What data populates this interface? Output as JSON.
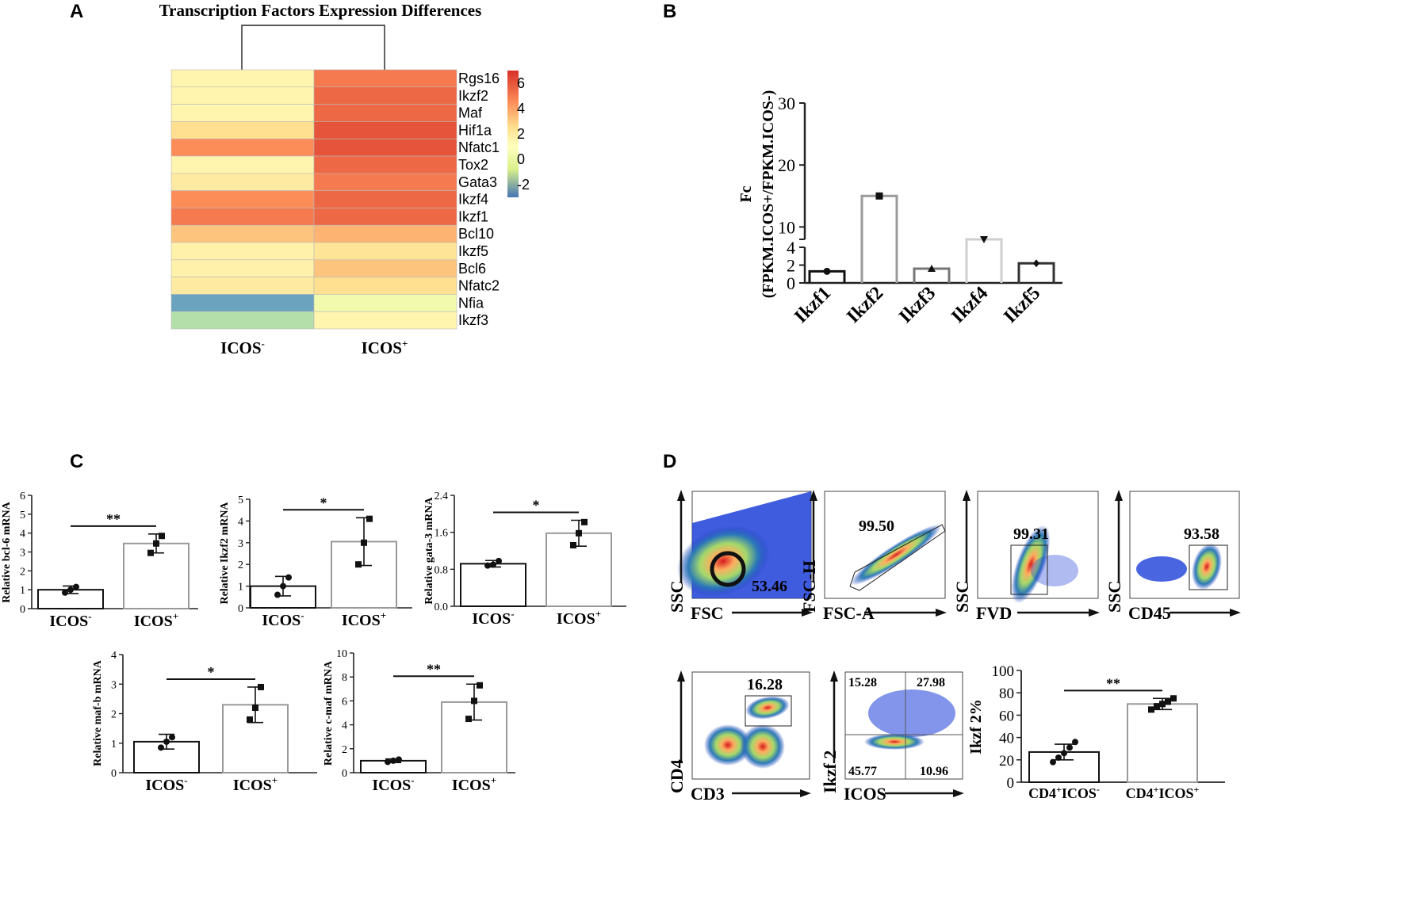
{
  "panels": {
    "A": {
      "letter": "A",
      "title": "Transcription Factors Expression Differences",
      "genes": [
        "Rgs16",
        "Ikzf2",
        "Maf",
        "Hif1a",
        "Nfatc1",
        "Tox2",
        "Gata3",
        "Ikzf4",
        "Ikzf1",
        "Bcl10",
        "Ikzf5",
        "Bcl6",
        "Nfatc2",
        "Nfia",
        "Ikzf3"
      ],
      "values_icos_neg": [
        2.0,
        2.0,
        2.0,
        3.0,
        4.5,
        2.0,
        2.5,
        4.5,
        5.0,
        3.5,
        2.2,
        2.2,
        2.5,
        -2.0,
        -0.5
      ],
      "values_icos_pos": [
        5.0,
        5.5,
        5.5,
        6.0,
        6.0,
        5.5,
        5.0,
        5.5,
        5.5,
        3.8,
        2.8,
        3.5,
        3.0,
        1.0,
        2.0
      ],
      "col_base": [
        "ICOS",
        "ICOS"
      ],
      "col_sup": [
        "-",
        "+"
      ],
      "legend_ticks": [
        "6",
        "4",
        "2",
        "0",
        "-2"
      ],
      "legend_tick_values": [
        6,
        4,
        2,
        0,
        -2
      ],
      "color_min": -3,
      "color_max": 7
    },
    "B": {
      "letter": "B",
      "ylabel_line1": "Fc",
      "ylabel_line2": "(FPKM.ICOS+/FPKM.ICOS-)",
      "upper_ticks": [
        "30",
        "20",
        "10"
      ],
      "upper_tick_values": [
        30,
        20,
        10
      ],
      "lower_ticks": [
        "4",
        "2",
        "0"
      ],
      "lower_tick_values": [
        4,
        2,
        0
      ],
      "chart_data": {
        "type": "bar",
        "categories": [
          "Ikzf1",
          "Ikzf2",
          "Ikzf3",
          "Ikzf4",
          "Ikzf5"
        ],
        "values": [
          1.3,
          15.0,
          1.6,
          6.0,
          2.2
        ],
        "markers": [
          "circle",
          "square",
          "triangle",
          "triangle-down",
          "diamond"
        ],
        "bar_colors": [
          "#111111",
          "#9a9a9a",
          "#777777",
          "#cfcfcf",
          "#333333"
        ],
        "ylabel": "Fc (FPKM.ICOS+/FPKM.ICOS-)",
        "ylim_upper": [
          8,
          30
        ],
        "ylim_lower": [
          0,
          4
        ],
        "axis_break": true
      }
    },
    "C": {
      "letter": "C",
      "x_base": "ICOS",
      "x_sup": [
        "-",
        "+"
      ],
      "charts": [
        {
          "ylabel": "Relative bcl-6 mRNA",
          "sig": "**",
          "ticks": [
            "6",
            "5",
            "4",
            "3",
            "2",
            "1",
            "0"
          ],
          "tick_values": [
            6,
            5,
            4,
            3,
            2,
            1,
            0
          ],
          "chart_data": {
            "type": "bar",
            "categories": [
              "ICOS-",
              "ICOS+"
            ],
            "values": [
              1.0,
              3.45
            ],
            "sd": [
              0.2,
              0.5
            ],
            "points": [
              [
                0.85,
                1.0,
                1.15
              ],
              [
                2.95,
                3.45,
                3.85
              ]
            ],
            "ylim": [
              0,
              6
            ]
          }
        },
        {
          "ylabel": "Relative Ikzf2 mRNA",
          "sig": "*",
          "ticks": [
            "5",
            "4",
            "3",
            "2",
            "1",
            "0"
          ],
          "tick_values": [
            5,
            4,
            3,
            2,
            1,
            0
          ],
          "chart_data": {
            "type": "bar",
            "categories": [
              "ICOS-",
              "ICOS+"
            ],
            "values": [
              1.0,
              3.05
            ],
            "sd": [
              0.45,
              1.1
            ],
            "points": [
              [
                0.6,
                1.0,
                1.4
              ],
              [
                2.0,
                3.0,
                4.1
              ]
            ],
            "ylim": [
              0,
              5
            ]
          }
        },
        {
          "ylabel": "Relative gata-3 mRNA",
          "sig": "*",
          "ticks": [
            "2.4",
            "1.6",
            "0.8",
            "0.0"
          ],
          "tick_values": [
            2.4,
            1.6,
            0.8,
            0.0
          ],
          "chart_data": {
            "type": "bar",
            "categories": [
              "ICOS-",
              "ICOS+"
            ],
            "values": [
              0.92,
              1.58
            ],
            "sd": [
              0.07,
              0.28
            ],
            "points": [
              [
                0.88,
                0.9,
                0.98
              ],
              [
                1.32,
                1.58,
                1.82
              ]
            ],
            "ylim": [
              0,
              2.4
            ]
          }
        },
        {
          "ylabel": "Relative maf-b mRNA",
          "sig": "*",
          "ticks": [
            "4",
            "3",
            "2",
            "1",
            "0"
          ],
          "tick_values": [
            4,
            3,
            2,
            1,
            0
          ],
          "chart_data": {
            "type": "bar",
            "categories": [
              "ICOS-",
              "ICOS+"
            ],
            "values": [
              1.05,
              2.3
            ],
            "sd": [
              0.25,
              0.6
            ],
            "points": [
              [
                0.85,
                1.05,
                1.2
              ],
              [
                1.8,
                2.2,
                2.9
              ]
            ],
            "ylim": [
              0,
              4
            ]
          }
        },
        {
          "ylabel": "Relative c-maf mRNA",
          "sig": "**",
          "ticks": [
            "10",
            "8",
            "6",
            "4",
            "2",
            "0"
          ],
          "tick_values": [
            10,
            8,
            6,
            4,
            2,
            0
          ],
          "chart_data": {
            "type": "bar",
            "categories": [
              "ICOS-",
              "ICOS+"
            ],
            "values": [
              1.0,
              5.9
            ],
            "sd": [
              0.15,
              1.5
            ],
            "points": [
              [
                0.9,
                1.0,
                1.1
              ],
              [
                4.5,
                6.0,
                7.3
              ]
            ],
            "ylim": [
              0,
              10
            ]
          }
        }
      ]
    },
    "D": {
      "letter": "D",
      "flow": [
        {
          "x": "FSC",
          "y": "SSC",
          "gate_values": [
            "53.46"
          ]
        },
        {
          "x": "FSC-A",
          "y": "FSC-H",
          "gate_values": [
            "99.50"
          ]
        },
        {
          "x": "FVD",
          "y": "SSC",
          "gate_values": [
            "99.31"
          ]
        },
        {
          "x": "CD45",
          "y": "SSC",
          "gate_values": [
            "93.58"
          ]
        },
        {
          "x": "CD3",
          "y": "CD4",
          "gate_values": [
            "16.28"
          ]
        },
        {
          "x": "ICOS",
          "y": "Ikzf 2",
          "gate_values": [
            "15.28",
            "27.98",
            "45.77",
            "10.96"
          ]
        }
      ],
      "summary": {
        "ylabel": "Ikzf 2%",
        "sig": "**",
        "ticks": [
          "100",
          "80",
          "60",
          "40",
          "20",
          "0"
        ],
        "tick_values": [
          100,
          80,
          60,
          40,
          20,
          0
        ],
        "x_labels": [
          {
            "pre": "CD4",
            "pre_sup": "+",
            "base": "ICOS",
            "sup": "-"
          },
          {
            "pre": "CD4",
            "pre_sup": "+",
            "base": "ICOS",
            "sup": "+"
          }
        ],
        "chart_data": {
          "type": "bar",
          "categories": [
            "CD4+ICOS-",
            "CD4+ICOS+"
          ],
          "values": [
            27,
            70
          ],
          "sd": [
            7,
            5
          ],
          "points": [
            [
              18,
              22,
              26,
              31,
              36
            ],
            [
              65,
              68,
              70,
              72,
              75
            ]
          ],
          "ylim": [
            0,
            100
          ]
        }
      }
    }
  }
}
